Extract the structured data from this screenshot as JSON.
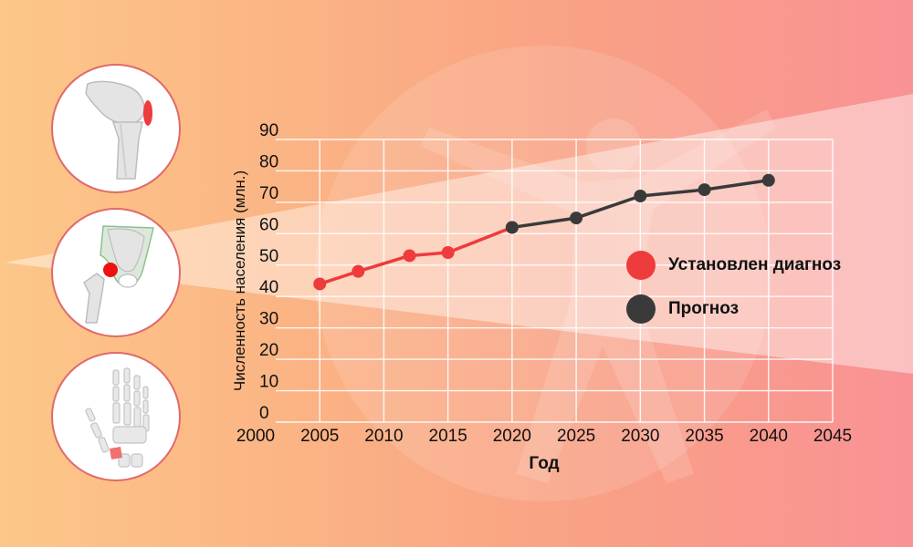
{
  "chart_data": {
    "type": "line",
    "title": "",
    "xlabel": "Год",
    "ylabel": "Численность населения (млн.)",
    "xlim": [
      2000,
      2045
    ],
    "ylim": [
      0,
      90
    ],
    "xticks": [
      2000,
      2005,
      2010,
      2015,
      2020,
      2025,
      2030,
      2035,
      2040,
      2045
    ],
    "yticks": [
      0,
      10,
      20,
      30,
      40,
      50,
      60,
      70,
      80,
      90
    ],
    "grid": true,
    "series": [
      {
        "name": "Установлен диагноз",
        "color": "#ee3b3b",
        "points": [
          [
            2005,
            44
          ],
          [
            2008,
            48
          ],
          [
            2012,
            53
          ],
          [
            2015,
            54
          ],
          [
            2020,
            62
          ]
        ]
      },
      {
        "name": "Прогноз",
        "color": "#3a3a3a",
        "points": [
          [
            2020,
            62
          ],
          [
            2025,
            65
          ],
          [
            2030,
            72
          ],
          [
            2035,
            74
          ],
          [
            2040,
            77
          ]
        ]
      }
    ],
    "legend": {
      "position": "right",
      "items": [
        {
          "label": "Установлен диагноз",
          "color": "#ee3b3b"
        },
        {
          "label": "Прогноз",
          "color": "#3a3a3a"
        }
      ]
    }
  },
  "illustrations": {
    "icons": [
      "knee-joint-icon",
      "hip-joint-icon",
      "hand-bones-icon"
    ]
  }
}
